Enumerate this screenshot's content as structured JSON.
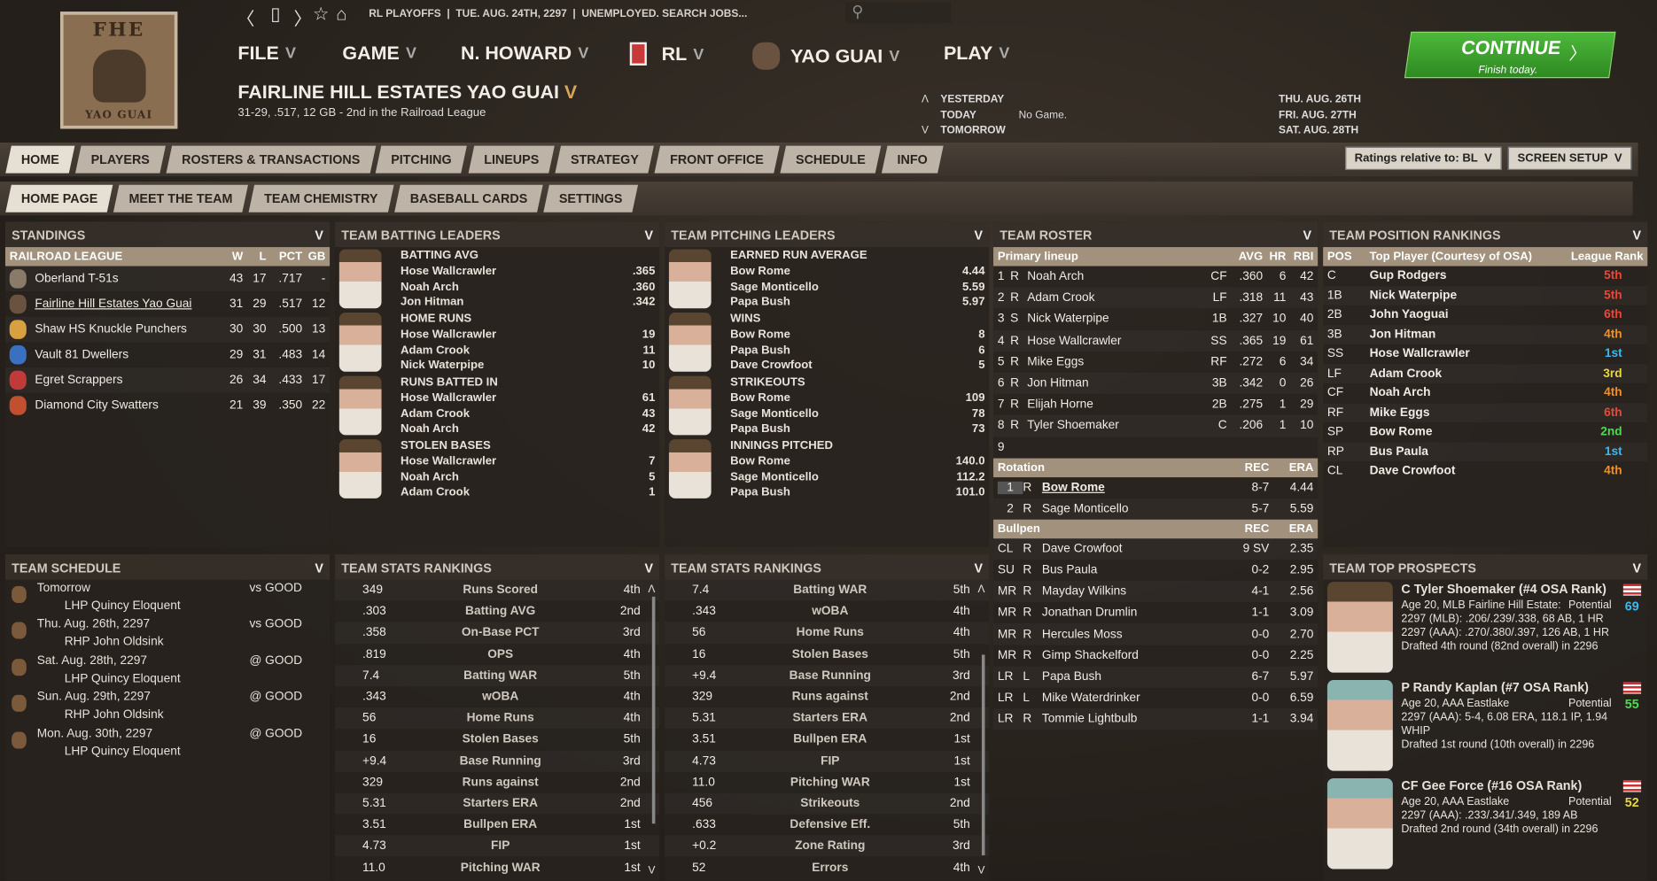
{
  "header": {
    "logo_text_top": "FHE",
    "logo_text_bottom": "YAO GUAI",
    "crumb": "RL PLAYOFFS  |  TUE. AUG. 24TH, 2297  |  UNEMPLOYED. SEARCH JOBS...",
    "search_placeholder": "",
    "menus": [
      {
        "label": "FILE"
      },
      {
        "label": "GAME"
      },
      {
        "label": "N. HOWARD"
      },
      {
        "label": "RL"
      },
      {
        "label": "YAO GUAI"
      },
      {
        "label": "PLAY"
      }
    ],
    "team_title": "FAIRLINE HILL ESTATES YAO GUAI",
    "team_record": "31-29, .517, 12 GB - 2nd in the Railroad League",
    "days": {
      "yesterday": "YESTERDAY",
      "today": "TODAY",
      "today_val": "No Game.",
      "tomorrow": "TOMORROW",
      "d1": "THU. AUG. 26TH",
      "d2": "FRI. AUG. 27TH",
      "d3": "SAT. AUG. 28TH"
    },
    "continue": {
      "label": "CONTINUE",
      "sub": "Finish today."
    }
  },
  "tabs": [
    "HOME",
    "PLAYERS",
    "ROSTERS & TRANSACTIONS",
    "PITCHING",
    "LINEUPS",
    "STRATEGY",
    "FRONT OFFICE",
    "SCHEDULE",
    "INFO"
  ],
  "ratings_select": "Ratings relative to: BL",
  "screen_setup": "SCREEN SETUP",
  "subtabs": [
    "HOME PAGE",
    "MEET THE TEAM",
    "TEAM CHEMISTRY",
    "BASEBALL CARDS",
    "SETTINGS"
  ],
  "standings": {
    "title": "STANDINGS",
    "cols": [
      "RAILROAD LEAGUE",
      "W",
      "L",
      "PCT",
      "GB"
    ],
    "rows": [
      [
        "Oberland T-51s",
        "43",
        "17",
        ".717",
        "-"
      ],
      [
        "Fairline Hill Estates Yao Guai",
        "31",
        "29",
        ".517",
        "12"
      ],
      [
        "Shaw HS Knuckle Punchers",
        "30",
        "30",
        ".500",
        "13"
      ],
      [
        "Vault 81 Dwellers",
        "29",
        "31",
        ".483",
        "14"
      ],
      [
        "Egret Scrappers",
        "26",
        "34",
        ".433",
        "17"
      ],
      [
        "Diamond City Swatters",
        "21",
        "39",
        ".350",
        "22"
      ]
    ]
  },
  "batting_leaders": {
    "title": "TEAM BATTING LEADERS",
    "groups": [
      {
        "cat": "BATTING AVG",
        "rows": [
          [
            "Hose Wallcrawler",
            ".365"
          ],
          [
            "Noah Arch",
            ".360"
          ],
          [
            "Jon Hitman",
            ".342"
          ]
        ]
      },
      {
        "cat": "HOME RUNS",
        "rows": [
          [
            "Hose Wallcrawler",
            "19"
          ],
          [
            "Adam Crook",
            "11"
          ],
          [
            "Nick Waterpipe",
            "10"
          ]
        ]
      },
      {
        "cat": "RUNS BATTED IN",
        "rows": [
          [
            "Hose Wallcrawler",
            "61"
          ],
          [
            "Adam Crook",
            "43"
          ],
          [
            "Noah Arch",
            "42"
          ]
        ]
      },
      {
        "cat": "STOLEN BASES",
        "rows": [
          [
            "Hose Wallcrawler",
            "7"
          ],
          [
            "Noah Arch",
            "5"
          ],
          [
            "Adam Crook",
            "1"
          ]
        ]
      }
    ]
  },
  "pitching_leaders": {
    "title": "TEAM PITCHING LEADERS",
    "groups": [
      {
        "cat": "EARNED RUN AVERAGE",
        "rows": [
          [
            "Bow Rome",
            "4.44"
          ],
          [
            "Sage Monticello",
            "5.59"
          ],
          [
            "Papa Bush",
            "5.97"
          ]
        ]
      },
      {
        "cat": "WINS",
        "rows": [
          [
            "Bow Rome",
            "8"
          ],
          [
            "Papa Bush",
            "6"
          ],
          [
            "Dave Crowfoot",
            "5"
          ]
        ]
      },
      {
        "cat": "STRIKEOUTS",
        "rows": [
          [
            "Bow Rome",
            "109"
          ],
          [
            "Sage Monticello",
            "78"
          ],
          [
            "Papa Bush",
            "73"
          ]
        ]
      },
      {
        "cat": "INNINGS PITCHED",
        "rows": [
          [
            "Bow Rome",
            "140.0"
          ],
          [
            "Sage Monticello",
            "112.2"
          ],
          [
            "Papa Bush",
            "101.0"
          ]
        ]
      }
    ]
  },
  "roster": {
    "title": "TEAM ROSTER",
    "lineup_cols": [
      "Primary lineup",
      "AVG",
      "HR",
      "RBI"
    ],
    "lineup": [
      [
        "1",
        "R",
        "Noah Arch",
        "CF",
        ".360",
        "6",
        "42"
      ],
      [
        "2",
        "R",
        "Adam Crook",
        "LF",
        ".318",
        "11",
        "43"
      ],
      [
        "3",
        "S",
        "Nick Waterpipe",
        "1B",
        ".327",
        "10",
        "40"
      ],
      [
        "4",
        "R",
        "Hose Wallcrawler",
        "SS",
        ".365",
        "19",
        "61"
      ],
      [
        "5",
        "R",
        "Mike Eggs",
        "RF",
        ".272",
        "6",
        "34"
      ],
      [
        "6",
        "R",
        "Jon Hitman",
        "3B",
        ".342",
        "0",
        "26"
      ],
      [
        "7",
        "R",
        "Elijah Horne",
        "2B",
        ".275",
        "1",
        "29"
      ],
      [
        "8",
        "R",
        "Tyler Shoemaker",
        "C",
        ".206",
        "1",
        "10"
      ],
      [
        "9",
        "",
        "",
        "",
        "",
        "",
        ""
      ]
    ],
    "rotation_cols": [
      "Rotation",
      "REC",
      "ERA"
    ],
    "rotation": [
      [
        "1",
        "R",
        "Bow Rome",
        "8-7",
        "4.44"
      ],
      [
        "2",
        "R",
        "Sage Monticello",
        "5-7",
        "5.59"
      ]
    ],
    "bullpen_cols": [
      "Bullpen",
      "REC",
      "ERA"
    ],
    "bullpen": [
      [
        "CL",
        "R",
        "Dave Crowfoot",
        "9 SV",
        "2.35"
      ],
      [
        "SU",
        "R",
        "Bus Paula",
        "0-2",
        "2.95"
      ],
      [
        "MR",
        "R",
        "Mayday Wilkins",
        "4-1",
        "2.56"
      ],
      [
        "MR",
        "R",
        "Jonathan Drumlin",
        "1-1",
        "3.09"
      ],
      [
        "MR",
        "R",
        "Hercules Moss",
        "0-0",
        "2.70"
      ],
      [
        "MR",
        "R",
        "Gimp Shackelford",
        "0-0",
        "2.25"
      ],
      [
        "LR",
        "L",
        "Papa Bush",
        "6-7",
        "5.97"
      ],
      [
        "LR",
        "L",
        "Mike Waterdrinker",
        "0-0",
        "6.59"
      ],
      [
        "LR",
        "R",
        "Tommie Lightbulb",
        "1-1",
        "3.94"
      ]
    ]
  },
  "position_rankings": {
    "title": "TEAM POSITION RANKINGS",
    "cols": [
      "POS",
      "Top Player (Courtesy of OSA)",
      "League Rank"
    ],
    "rows": [
      [
        "C",
        "Gup Rodgers",
        "5th",
        "#e8483a"
      ],
      [
        "1B",
        "Nick Waterpipe",
        "5th",
        "#e8483a"
      ],
      [
        "2B",
        "John Yaoguai",
        "6th",
        "#e8483a"
      ],
      [
        "3B",
        "Jon Hitman",
        "4th",
        "#f0902a"
      ],
      [
        "SS",
        "Hose Wallcrawler",
        "1st",
        "#3ab8f0"
      ],
      [
        "LF",
        "Adam Crook",
        "3rd",
        "#e8d83a"
      ],
      [
        "CF",
        "Noah Arch",
        "4th",
        "#f0902a"
      ],
      [
        "RF",
        "Mike Eggs",
        "6th",
        "#e8483a"
      ],
      [
        "SP",
        "Bow Rome",
        "2nd",
        "#52d852"
      ],
      [
        "RP",
        "Bus Paula",
        "1st",
        "#3ab8f0"
      ],
      [
        "CL",
        "Dave Crowfoot",
        "4th",
        "#f0902a"
      ]
    ]
  },
  "schedule": {
    "title": "TEAM SCHEDULE",
    "rows": [
      [
        "Tomorrow",
        "vs GOOD",
        "LHP Quincy Eloquent"
      ],
      [
        "Thu. Aug. 26th, 2297",
        "vs GOOD",
        "RHP John Oldsink"
      ],
      [
        "Sat. Aug. 28th, 2297",
        "@ GOOD",
        "LHP Quincy Eloquent"
      ],
      [
        "Sun. Aug. 29th, 2297",
        "@ GOOD",
        "RHP John Oldsink"
      ],
      [
        "Mon. Aug. 30th, 2297",
        "@ GOOD",
        "LHP Quincy Eloquent"
      ]
    ]
  },
  "stats_rankings_1": {
    "title": "TEAM STATS RANKINGS",
    "rows": [
      [
        "349",
        "Runs Scored",
        "4th"
      ],
      [
        ".303",
        "Batting AVG",
        "2nd"
      ],
      [
        ".358",
        "On-Base PCT",
        "3rd"
      ],
      [
        ".819",
        "OPS",
        "4th"
      ],
      [
        "7.4",
        "Batting WAR",
        "5th"
      ],
      [
        ".343",
        "wOBA",
        "4th"
      ],
      [
        "56",
        "Home Runs",
        "4th"
      ],
      [
        "16",
        "Stolen Bases",
        "5th"
      ],
      [
        "+9.4",
        "Base Running",
        "3rd"
      ],
      [
        "329",
        "Runs against",
        "2nd"
      ],
      [
        "5.31",
        "Starters ERA",
        "2nd"
      ],
      [
        "3.51",
        "Bullpen ERA",
        "1st"
      ],
      [
        "4.73",
        "FIP",
        "1st"
      ],
      [
        "11.0",
        "Pitching WAR",
        "1st"
      ]
    ]
  },
  "stats_rankings_2": {
    "title": "TEAM STATS RANKINGS",
    "rows": [
      [
        "7.4",
        "Batting WAR",
        "5th"
      ],
      [
        ".343",
        "wOBA",
        "4th"
      ],
      [
        "56",
        "Home Runs",
        "4th"
      ],
      [
        "16",
        "Stolen Bases",
        "5th"
      ],
      [
        "+9.4",
        "Base Running",
        "3rd"
      ],
      [
        "329",
        "Runs against",
        "2nd"
      ],
      [
        "5.31",
        "Starters ERA",
        "2nd"
      ],
      [
        "3.51",
        "Bullpen ERA",
        "1st"
      ],
      [
        "4.73",
        "FIP",
        "1st"
      ],
      [
        "11.0",
        "Pitching WAR",
        "1st"
      ],
      [
        "456",
        "Strikeouts",
        "2nd"
      ],
      [
        ".633",
        "Defensive Eff.",
        "5th"
      ],
      [
        "+0.2",
        "Zone Rating",
        "3rd"
      ],
      [
        "52",
        "Errors",
        "4th"
      ]
    ]
  },
  "prospects": {
    "title": "TEAM TOP PROSPECTS",
    "items": [
      {
        "name": "C Tyler Shoemaker (#4 OSA Rank)",
        "l1": "Age 20, MLB Fairline Hill Estate:",
        "pot_label": "Potential",
        "pot": "69",
        "pot_color": "#3ab8f0",
        "l2": "2297 (MLB): .206/.239/.338, 68 AB, 1 HR",
        "l3": "2297 (AAA): .270/.380/.397, 126 AB, 1 HR",
        "l4": "Drafted 4th round (82nd overall) in 2296",
        "cap": "brown"
      },
      {
        "name": "P Randy Kaplan (#7 OSA Rank)",
        "l1": "Age 20, AAA Eastlake",
        "pot_label": "Potential",
        "pot": "55",
        "pot_color": "#52d852",
        "l2": "2297 (AAA): 5-4, 6.08 ERA, 118.1 IP, 1.94 WHIP",
        "l3": "Drafted 1st round (10th overall) in 2296",
        "l4": "",
        "cap": "teal"
      },
      {
        "name": "CF Gee Force (#16 OSA Rank)",
        "l1": "Age 20, AAA Eastlake",
        "pot_label": "Potential",
        "pot": "52",
        "pot_color": "#e8d83a",
        "l2": "2297 (AAA): .233/.341/.349, 189 AB",
        "l3": "Drafted 2nd round (34th overall) in 2296",
        "l4": "",
        "cap": "teal"
      }
    ]
  }
}
